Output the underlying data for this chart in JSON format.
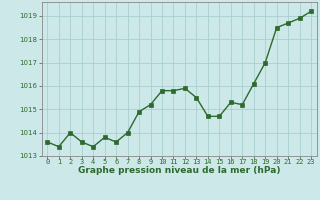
{
  "x": [
    0,
    1,
    2,
    3,
    4,
    5,
    6,
    7,
    8,
    9,
    10,
    11,
    12,
    13,
    14,
    15,
    16,
    17,
    18,
    19,
    20,
    21,
    22,
    23
  ],
  "y": [
    1013.6,
    1013.4,
    1014.0,
    1013.6,
    1013.4,
    1013.8,
    1013.6,
    1014.0,
    1014.9,
    1015.2,
    1015.8,
    1015.8,
    1015.9,
    1015.5,
    1014.7,
    1014.7,
    1015.3,
    1015.2,
    1016.1,
    1017.0,
    1018.5,
    1018.7,
    1018.9,
    1019.2
  ],
  "line_color": "#2d6a2d",
  "marker_color": "#2d6a2d",
  "bg_color": "#cce8e8",
  "grid_color": "#aacece",
  "xlabel": "Graphe pression niveau de la mer (hPa)",
  "xlabel_color": "#2d6a2d",
  "tick_label_color": "#2d6a2d",
  "ylim": [
    1013.0,
    1019.6
  ],
  "yticks": [
    1013,
    1014,
    1015,
    1016,
    1017,
    1018,
    1019
  ],
  "xticks": [
    0,
    1,
    2,
    3,
    4,
    5,
    6,
    7,
    8,
    9,
    10,
    11,
    12,
    13,
    14,
    15,
    16,
    17,
    18,
    19,
    20,
    21,
    22,
    23
  ],
  "spine_color": "#888888",
  "tick_fontsize": 5.0,
  "xlabel_fontsize": 6.5
}
